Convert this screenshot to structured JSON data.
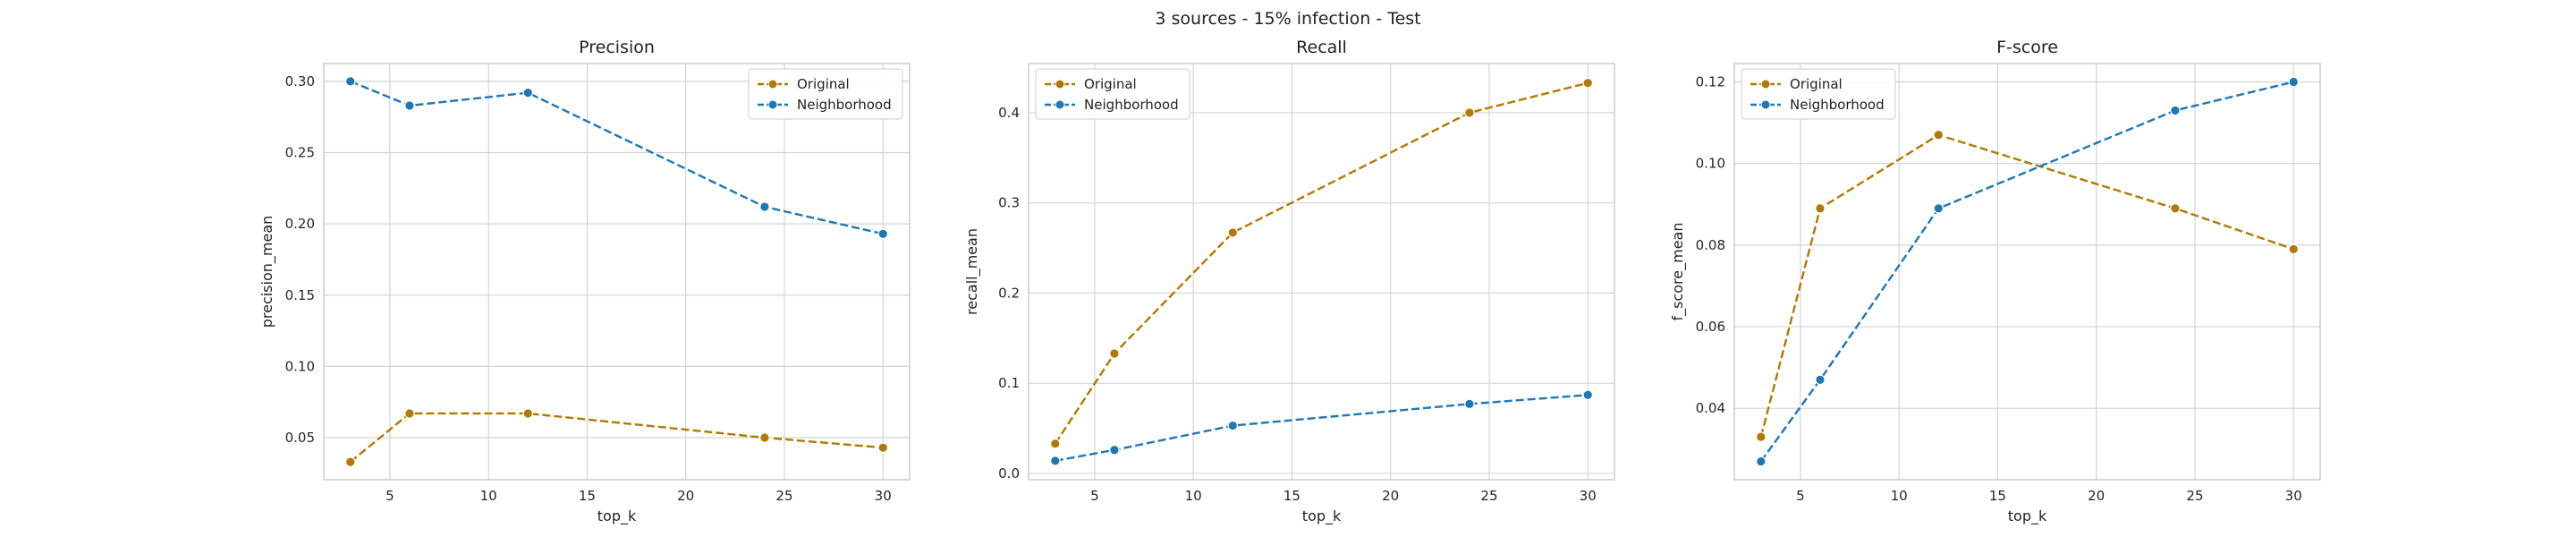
{
  "figure": {
    "title": "3 sources - 15% infection - Test"
  },
  "colors": {
    "original": "#b07a00",
    "neighborhood": "#1f77b4",
    "grid": "#d4d4d4",
    "frame": "#c9c9c9"
  },
  "chart_data": [
    {
      "type": "line",
      "title": "Precision",
      "xlabel": "top_k",
      "ylabel": "precision_mean",
      "x": [
        3,
        6,
        12,
        24,
        30
      ],
      "xlim": [
        1.65,
        31.35
      ],
      "ylim": [
        0.0205,
        0.3125
      ],
      "xticks": [
        5,
        10,
        15,
        20,
        25,
        30
      ],
      "yticks": [
        0.05,
        0.1,
        0.15,
        0.2,
        0.25,
        0.3
      ],
      "ytick_labels": [
        "0.05",
        "0.10",
        "0.15",
        "0.20",
        "0.25",
        "0.30"
      ],
      "grid": true,
      "legend": "top-right",
      "series": [
        {
          "name": "Original",
          "values": [
            0.033,
            0.067,
            0.067,
            0.05,
            0.043
          ]
        },
        {
          "name": "Neighborhood",
          "values": [
            0.3,
            0.283,
            0.292,
            0.212,
            0.193
          ]
        }
      ]
    },
    {
      "type": "line",
      "title": "Recall",
      "xlabel": "top_k",
      "ylabel": "recall_mean",
      "x": [
        3,
        6,
        12,
        24,
        30
      ],
      "xlim": [
        1.65,
        31.35
      ],
      "ylim": [
        -0.007,
        0.4545
      ],
      "xticks": [
        5,
        10,
        15,
        20,
        25,
        30
      ],
      "yticks": [
        0.0,
        0.1,
        0.2,
        0.3,
        0.4
      ],
      "ytick_labels": [
        "0.0",
        "0.1",
        "0.2",
        "0.3",
        "0.4"
      ],
      "grid": true,
      "legend": "top-left",
      "series": [
        {
          "name": "Original",
          "values": [
            0.033,
            0.133,
            0.267,
            0.4,
            0.433
          ]
        },
        {
          "name": "Neighborhood",
          "values": [
            0.014,
            0.026,
            0.053,
            0.077,
            0.087
          ]
        }
      ]
    },
    {
      "type": "line",
      "title": "F-score",
      "xlabel": "top_k",
      "ylabel": "f_score_mean",
      "x": [
        3,
        6,
        12,
        24,
        30
      ],
      "xlim": [
        1.65,
        31.35
      ],
      "ylim": [
        0.0225,
        0.1245
      ],
      "xticks": [
        5,
        10,
        15,
        20,
        25,
        30
      ],
      "yticks": [
        0.04,
        0.06,
        0.08,
        0.1,
        0.12
      ],
      "ytick_labels": [
        "0.04",
        "0.06",
        "0.08",
        "0.10",
        "0.12"
      ],
      "grid": true,
      "legend": "top-left",
      "series": [
        {
          "name": "Original",
          "values": [
            0.033,
            0.089,
            0.107,
            0.089,
            0.079
          ]
        },
        {
          "name": "Neighborhood",
          "values": [
            0.027,
            0.047,
            0.089,
            0.113,
            0.12
          ]
        }
      ]
    }
  ]
}
